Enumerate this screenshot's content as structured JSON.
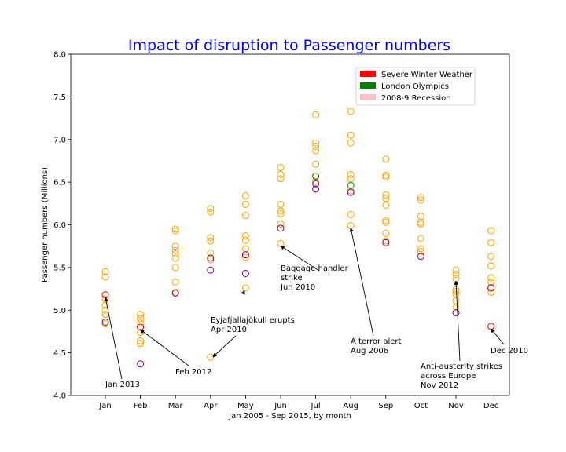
{
  "chart_data": {
    "type": "scatter",
    "title": "Impact of disruption to Passenger numbers",
    "xlabel": "Jan 2005 - Sep 2015, by month",
    "ylabel": "Passenger numbers (Millions)",
    "categories": [
      "Jan",
      "Feb",
      "Mar",
      "Apr",
      "May",
      "Jun",
      "Jul",
      "Aug",
      "Sep",
      "Oct",
      "Nov",
      "Dec"
    ],
    "ylim": [
      4.0,
      8.0
    ],
    "yticks": [
      "4.0",
      "4.5",
      "5.0",
      "5.5",
      "6.0",
      "6.5",
      "7.0",
      "7.5",
      "8.0"
    ],
    "grid": false,
    "legend_position": "top-right",
    "legend": [
      {
        "label": "Severe Winter Weather",
        "color": "#ff0000"
      },
      {
        "label": "London Olympics",
        "color": "#008000"
      },
      {
        "label": "2008-9 Recession",
        "color": "#ffc0cb"
      }
    ],
    "series": [
      {
        "color": "#ffa500",
        "points": [
          [
            "Jan",
            5.45
          ],
          [
            "Jan",
            5.39
          ],
          [
            "Jan",
            5.13
          ],
          [
            "Jan",
            5.06
          ],
          [
            "Jan",
            5.0
          ],
          [
            "Jan",
            4.95
          ],
          [
            "Jan",
            4.84
          ],
          [
            "Feb",
            4.95
          ],
          [
            "Feb",
            4.9
          ],
          [
            "Feb",
            4.85
          ],
          [
            "Feb",
            4.8
          ],
          [
            "Feb",
            4.74
          ],
          [
            "Feb",
            4.64
          ],
          [
            "Feb",
            4.61
          ],
          [
            "Mar",
            5.95
          ],
          [
            "Mar",
            5.93
          ],
          [
            "Mar",
            5.75
          ],
          [
            "Mar",
            5.7
          ],
          [
            "Mar",
            5.66
          ],
          [
            "Mar",
            5.61
          ],
          [
            "Mar",
            5.5
          ],
          [
            "Mar",
            5.33
          ],
          [
            "Mar",
            5.21
          ],
          [
            "Apr",
            6.19
          ],
          [
            "Apr",
            6.15
          ],
          [
            "Apr",
            5.85
          ],
          [
            "Apr",
            5.81
          ],
          [
            "Apr",
            5.67
          ],
          [
            "Apr",
            5.59
          ],
          [
            "Apr",
            4.45
          ],
          [
            "May",
            6.34
          ],
          [
            "May",
            6.24
          ],
          [
            "May",
            6.11
          ],
          [
            "May",
            5.87
          ],
          [
            "May",
            5.82
          ],
          [
            "May",
            5.72
          ],
          [
            "May",
            5.65
          ],
          [
            "May",
            5.62
          ],
          [
            "May",
            5.26
          ],
          [
            "Jun",
            6.67
          ],
          [
            "Jun",
            6.59
          ],
          [
            "Jun",
            6.54
          ],
          [
            "Jun",
            6.24
          ],
          [
            "Jun",
            6.16
          ],
          [
            "Jun",
            6.13
          ],
          [
            "Jun",
            6.01
          ],
          [
            "Jun",
            5.78
          ],
          [
            "Jul",
            7.29
          ],
          [
            "Jul",
            6.96
          ],
          [
            "Jul",
            6.92
          ],
          [
            "Jul",
            6.87
          ],
          [
            "Jul",
            6.71
          ],
          [
            "Jul",
            6.57
          ],
          [
            "Jul",
            6.51
          ],
          [
            "Aug",
            7.33
          ],
          [
            "Aug",
            7.05
          ],
          [
            "Aug",
            6.96
          ],
          [
            "Aug",
            6.59
          ],
          [
            "Aug",
            6.54
          ],
          [
            "Aug",
            6.4
          ],
          [
            "Aug",
            6.12
          ],
          [
            "Aug",
            5.99
          ],
          [
            "Sep",
            6.77
          ],
          [
            "Sep",
            6.58
          ],
          [
            "Sep",
            6.56
          ],
          [
            "Sep",
            6.35
          ],
          [
            "Sep",
            6.31
          ],
          [
            "Sep",
            6.23
          ],
          [
            "Sep",
            6.05
          ],
          [
            "Sep",
            6.03
          ],
          [
            "Sep",
            5.9
          ],
          [
            "Sep",
            5.81
          ],
          [
            "Oct",
            6.32
          ],
          [
            "Oct",
            6.29
          ],
          [
            "Oct",
            6.1
          ],
          [
            "Oct",
            6.03
          ],
          [
            "Oct",
            6.01
          ],
          [
            "Oct",
            5.84
          ],
          [
            "Oct",
            5.72
          ],
          [
            "Oct",
            5.69
          ],
          [
            "Nov",
            5.47
          ],
          [
            "Nov",
            5.42
          ],
          [
            "Nov",
            5.37
          ],
          [
            "Nov",
            5.24
          ],
          [
            "Nov",
            5.22
          ],
          [
            "Nov",
            5.19
          ],
          [
            "Nov",
            5.11
          ],
          [
            "Nov",
            5.03
          ],
          [
            "Dec",
            5.93
          ],
          [
            "Dec",
            5.79
          ],
          [
            "Dec",
            5.63
          ],
          [
            "Dec",
            5.52
          ],
          [
            "Dec",
            5.38
          ],
          [
            "Dec",
            5.33
          ],
          [
            "Dec",
            5.27
          ],
          [
            "Dec",
            5.21
          ]
        ]
      },
      {
        "color": "#800080",
        "points": [
          [
            "Jan",
            4.86
          ],
          [
            "Feb",
            4.37
          ],
          [
            "Mar",
            5.2
          ],
          [
            "Apr",
            5.61
          ],
          [
            "Apr",
            5.47
          ],
          [
            "May",
            5.65
          ],
          [
            "May",
            5.43
          ],
          [
            "Jun",
            5.96
          ],
          [
            "Jul",
            6.48
          ],
          [
            "Jul",
            6.42
          ],
          [
            "Aug",
            6.38
          ],
          [
            "Sep",
            5.79
          ],
          [
            "Oct",
            5.63
          ],
          [
            "Nov",
            4.97
          ],
          [
            "Dec",
            5.26
          ]
        ]
      },
      {
        "name": "Severe Winter Weather",
        "color": "#ff0000",
        "points": [
          [
            "Jan",
            5.18
          ],
          [
            "Feb",
            4.8
          ],
          [
            "Dec",
            4.81
          ]
        ]
      },
      {
        "name": "London Olympics",
        "color": "#008000",
        "points": [
          [
            "Jul",
            6.57
          ],
          [
            "Aug",
            6.46
          ]
        ]
      }
    ],
    "annotations": [
      {
        "lines": [
          "Jan 2013"
        ],
        "month": "Jan",
        "value": 5.18
      },
      {
        "lines": [
          "Feb 2012"
        ],
        "month": "Feb",
        "value": 4.8
      },
      {
        "lines": [
          "Eyjafjallajökull erupts",
          "Apr 2010"
        ],
        "month": "Apr",
        "value": 4.45
      },
      {
        "lines": [
          "Baggage handler",
          "strike",
          "Jun 2010"
        ],
        "month": "Jun",
        "value": 5.78
      },
      {
        "lines": [
          "A terror alert",
          "Aug 2006"
        ],
        "month": "Aug",
        "value": 5.99
      },
      {
        "lines": [
          "Anti-austerity strikes",
          "across Europe",
          "Nov 2012"
        ],
        "month": "Nov",
        "value": 5.37
      },
      {
        "lines": [
          "Dec 2010"
        ],
        "month": "Dec",
        "value": 4.81
      }
    ]
  }
}
